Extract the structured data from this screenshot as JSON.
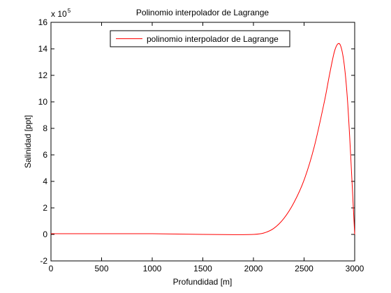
{
  "chart_data": {
    "type": "line",
    "title": "Polinomio interpolador de Lagrange",
    "xlabel": "Profundidad [m]",
    "ylabel": "Salinidad [ppt]",
    "xlim": [
      0,
      3000
    ],
    "ylim": [
      -2,
      16
    ],
    "y_multiplier_text": "x 10",
    "y_multiplier_exponent": "5",
    "xticks": [
      0,
      500,
      1000,
      1500,
      2000,
      2500,
      3000
    ],
    "yticks": [
      -2,
      0,
      2,
      4,
      6,
      8,
      10,
      12,
      14,
      16
    ],
    "xtick_labels": [
      "0",
      "500",
      "1000",
      "1500",
      "2000",
      "2500",
      "3000"
    ],
    "ytick_labels": [
      "-2",
      "0",
      "2",
      "4",
      "6",
      "8",
      "10",
      "12",
      "14",
      "16"
    ],
    "grid": false,
    "legend_position": "top-center",
    "series": [
      {
        "name": "polinomio interpolador de Lagrange",
        "color": "#ff0000",
        "x": [
          0,
          500,
          1000,
          1500,
          1800,
          2000,
          2100,
          2200,
          2300,
          2400,
          2500,
          2600,
          2700,
          2750,
          2800,
          2840,
          2870,
          2900,
          2930,
          2960,
          2980,
          3000
        ],
        "y": [
          0.05,
          0.05,
          0.05,
          0.0,
          -0.02,
          0.0,
          0.1,
          0.45,
          1.2,
          2.4,
          4.1,
          6.6,
          10.0,
          12.0,
          13.8,
          14.4,
          14.0,
          12.6,
          10.0,
          6.0,
          3.0,
          0.0
        ]
      }
    ]
  }
}
